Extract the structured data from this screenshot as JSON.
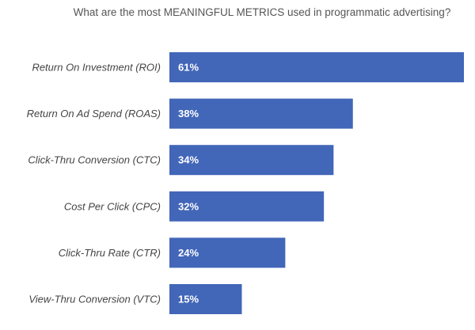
{
  "chart_data": {
    "type": "bar",
    "orientation": "horizontal",
    "title": "What are the most MEANINGFUL METRICS used in programmatic advertising?",
    "categories": [
      "Return On Investment (ROI)",
      "Return On Ad Spend (ROAS)",
      "Click-Thru Conversion (CTC)",
      "Cost Per Click (CPC)",
      "Click-Thru Rate (CTR)",
      "View-Thru Conversion (VTC)"
    ],
    "values": [
      61,
      38,
      34,
      32,
      24,
      15
    ],
    "data_labels": [
      "61%",
      "38%",
      "34%",
      "32%",
      "24%",
      "15%"
    ],
    "xlabel": "",
    "ylabel": "",
    "xlim": [
      0,
      61
    ],
    "grid": false,
    "legend": "none",
    "bar_color": "#4266b8"
  }
}
